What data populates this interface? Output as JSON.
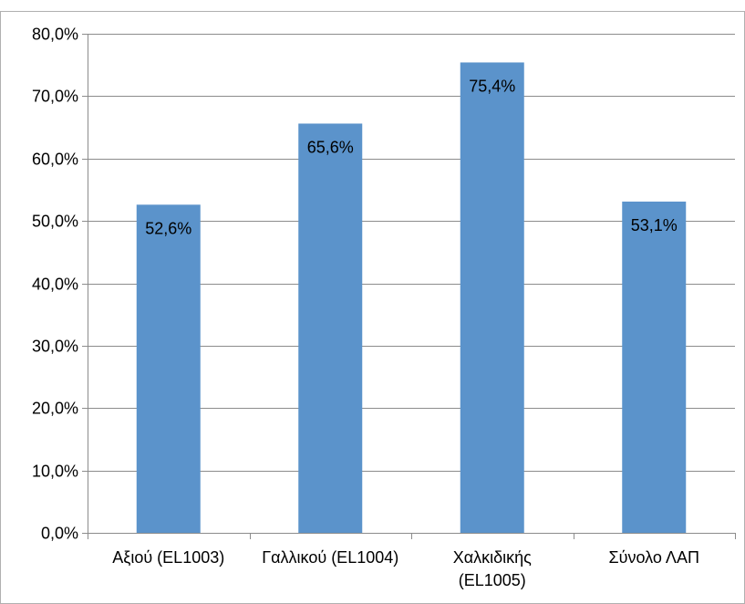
{
  "chart_data": {
    "type": "bar",
    "categories": [
      [
        "Αξιού (EL1003)"
      ],
      [
        "Γαλλικού (EL1004)"
      ],
      [
        "Χαλκιδικής",
        "(EL1005)"
      ],
      [
        "Σύνολο ΛΑΠ"
      ]
    ],
    "values": [
      52.6,
      65.6,
      75.4,
      53.1
    ],
    "data_labels": [
      "52,6%",
      "65,6%",
      "75,4%",
      "53,1%"
    ],
    "yticks": [
      0,
      10,
      20,
      30,
      40,
      50,
      60,
      70,
      80
    ],
    "ytick_labels": [
      "0,0%",
      "10,0%",
      "20,0%",
      "30,0%",
      "40,0%",
      "50,0%",
      "60,0%",
      "70,0%",
      "80,0%"
    ],
    "ylim": [
      0,
      80
    ],
    "grid": true,
    "legend": "none",
    "colors": {
      "bar": "#5b93cb",
      "grid": "#8c8c8c",
      "axis": "#8c8c8c"
    }
  }
}
